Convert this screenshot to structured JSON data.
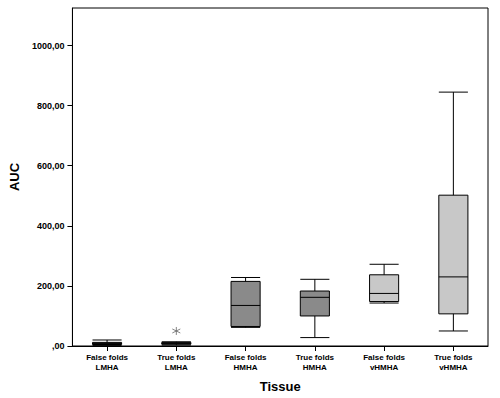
{
  "chart_data": {
    "type": "boxplot",
    "x_label": "Tissue",
    "y_label": "AUC",
    "categories": [
      "False folds\nLMHA",
      "True folds\nLMHA",
      "False folds\nHMHA",
      "True folds\nHMHA",
      "False folds\nvHMHA",
      "True folds\nvHMHA"
    ],
    "boxes": [
      {
        "min": 2,
        "q1": 5,
        "median": 8,
        "q3": 12,
        "max": 20
      },
      {
        "min": 3,
        "q1": 6,
        "median": 8,
        "q3": 12,
        "max": 14
      },
      {
        "min": 62,
        "q1": 65,
        "median": 135,
        "q3": 215,
        "max": 228
      },
      {
        "min": 28,
        "q1": 100,
        "median": 162,
        "q3": 183,
        "max": 222
      },
      {
        "min": 143,
        "q1": 148,
        "median": 175,
        "q3": 237,
        "max": 272
      },
      {
        "min": 50,
        "q1": 107,
        "median": 230,
        "q3": 502,
        "max": 845
      }
    ],
    "outliers": [
      {
        "category": "True folds\nLMHA",
        "value": 50
      }
    ],
    "marker": "asterisk",
    "colors": [
      "#6e6e6e",
      "#6e6e6e",
      "#8a8a8a",
      "#8a8a8a",
      "#c8c8c8",
      "#c8c8c8"
    ],
    "ylim": [
      0,
      1125
    ],
    "yticks": [
      {
        "value": 0,
        "label": ",00"
      },
      {
        "value": 200,
        "label": "200,00"
      },
      {
        "value": 400,
        "label": "400,00"
      },
      {
        "value": 600,
        "label": "600,00"
      },
      {
        "value": 800,
        "label": "800,00"
      },
      {
        "value": 1000,
        "label": "1000,00"
      }
    ],
    "grid": false
  }
}
